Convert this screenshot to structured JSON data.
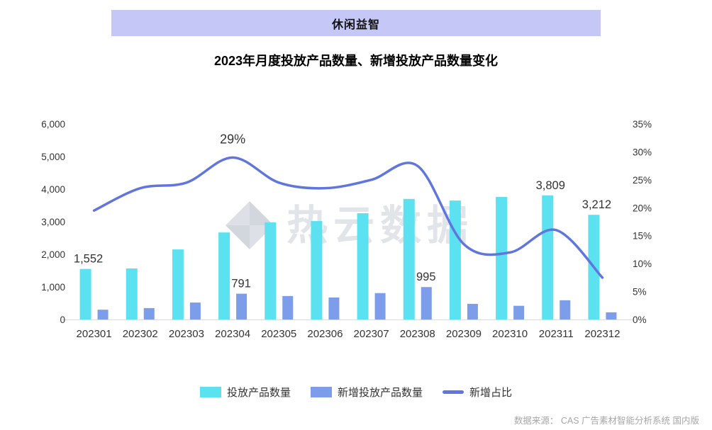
{
  "header": {
    "category": "休闲益智"
  },
  "title": "2023年月度投放产品数量、新增投放产品数量变化",
  "watermark": "热云数据",
  "source": "数据来源：  CAS 广告素材智能分析系统 国内版",
  "colors": {
    "banner_bg": "#c5c8f7",
    "bar_primary": "#5ce1f0",
    "bar_secondary": "#7d9cea",
    "line": "#6176dd",
    "watermark": "#c9ced8",
    "axis_text": "#333333",
    "source_text": "#a6a6a6"
  },
  "chart_data": {
    "type": "bar",
    "subtype": "combo-bar-line",
    "categories": [
      "202301",
      "202302",
      "202303",
      "202304",
      "202305",
      "202306",
      "202307",
      "202308",
      "202309",
      "202310",
      "202311",
      "202312"
    ],
    "series": [
      {
        "name": "投放产品数量",
        "type": "bar",
        "axis": "left",
        "color": "#5ce1f0",
        "values": [
          1552,
          1565,
          2150,
          2670,
          2980,
          3020,
          3260,
          3700,
          3650,
          3760,
          3809,
          3212
        ],
        "labels": {
          "0": "1,552",
          "10": "3,809",
          "11": "3,212"
        }
      },
      {
        "name": "新增投放产品数量",
        "type": "bar",
        "axis": "left",
        "color": "#7d9cea",
        "values": [
          300,
          350,
          520,
          791,
          720,
          675,
          810,
          995,
          480,
          420,
          590,
          220
        ],
        "labels": {
          "3": "791",
          "7": "995"
        }
      },
      {
        "name": "新增占比",
        "type": "line",
        "axis": "right",
        "color": "#6176dd",
        "values": [
          19.5,
          23.5,
          24.5,
          29,
          24.5,
          23.5,
          25,
          27.5,
          13.5,
          12,
          16,
          7.5
        ],
        "labels": {
          "3": "29%"
        }
      }
    ],
    "left_axis": {
      "min": 0,
      "max": 6000,
      "step": 1000,
      "tick_labels": [
        "0",
        "1,000",
        "2,000",
        "3,000",
        "4,000",
        "5,000",
        "6,000"
      ]
    },
    "right_axis": {
      "min": 0,
      "max": 35,
      "step": 5,
      "tick_labels": [
        "0%",
        "5%",
        "10%",
        "15%",
        "20%",
        "25%",
        "30%",
        "35%"
      ]
    },
    "legend": [
      "投放产品数量",
      "新增投放产品数量",
      "新增占比"
    ],
    "legend_position": "bottom",
    "grid": false
  }
}
